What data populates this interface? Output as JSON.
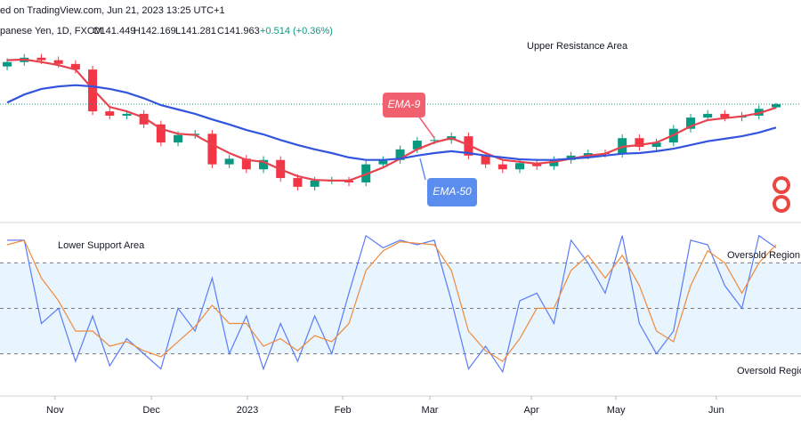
{
  "header": {
    "source": "ed on TradingView.com, Jun 21, 2023 13:25 UTC+1",
    "symbol": "panese Yen, 1D, FXCM",
    "open": "O141.449",
    "high": "H142.169",
    "low": "L141.281",
    "close": "C141.963",
    "change": "+0.514 (+0.36%)"
  },
  "chart_data": [
    {
      "type": "candlestick",
      "up_color": "#089981",
      "down_color": "#f23645",
      "open": [
        148.0,
        148.7,
        149.4,
        149.0,
        148.4,
        147.5,
        140.8,
        140.1,
        140.4,
        138.7,
        135.8,
        137.0,
        137.2,
        132.3,
        133.2,
        131.5,
        133.0,
        130.1,
        128.7,
        129.7,
        129.7,
        129.4,
        132.3,
        133.0,
        134.7,
        136.1,
        136.2,
        136.8,
        133.7,
        132.3,
        131.5,
        132.5,
        132.0,
        133.0,
        133.7,
        134.1,
        134.0,
        136.5,
        135.1,
        135.8,
        138.0,
        139.8,
        140.4,
        139.8,
        140.1,
        141.449
      ],
      "high": [
        149.3,
        150.0,
        150.0,
        149.6,
        149.0,
        148.1,
        141.4,
        141.0,
        141.0,
        139.3,
        137.6,
        137.8,
        137.8,
        133.8,
        133.8,
        133.6,
        133.6,
        130.7,
        130.3,
        130.3,
        130.3,
        132.9,
        133.6,
        135.3,
        136.7,
        136.8,
        137.4,
        137.4,
        134.3,
        132.9,
        133.1,
        133.1,
        133.6,
        134.3,
        134.7,
        134.7,
        137.1,
        137.1,
        136.4,
        138.6,
        140.4,
        141.0,
        141.0,
        140.7,
        141.8,
        142.169
      ],
      "low": [
        147.4,
        148.1,
        148.4,
        147.8,
        146.9,
        140.2,
        139.5,
        139.5,
        138.1,
        135.2,
        135.2,
        136.4,
        131.7,
        131.7,
        130.9,
        130.9,
        129.5,
        128.1,
        128.1,
        129.1,
        128.8,
        128.8,
        131.7,
        132.4,
        134.1,
        135.5,
        135.6,
        133.1,
        131.7,
        130.9,
        130.9,
        131.4,
        131.4,
        132.4,
        133.1,
        133.4,
        133.4,
        134.5,
        134.5,
        135.2,
        137.4,
        139.2,
        139.2,
        139.2,
        139.5,
        141.281
      ],
      "close": [
        148.7,
        149.4,
        149.0,
        148.4,
        147.5,
        140.8,
        140.1,
        140.4,
        138.7,
        135.8,
        137.0,
        137.2,
        132.3,
        133.2,
        131.5,
        133.0,
        130.1,
        128.7,
        129.7,
        129.7,
        129.4,
        132.3,
        133.0,
        134.7,
        136.1,
        136.2,
        136.8,
        133.7,
        132.3,
        131.5,
        132.5,
        132.0,
        133.0,
        133.7,
        134.1,
        134.0,
        136.5,
        135.1,
        135.8,
        138.0,
        139.8,
        140.4,
        139.8,
        140.1,
        141.2,
        141.963
      ],
      "series": [
        {
          "name": "EMA-9",
          "color": "#e8424f",
          "label_color": "#f0606e",
          "values": [
            149.0,
            149.1,
            148.7,
            148.2,
            147.5,
            144.4,
            141.5,
            140.8,
            139.8,
            138.0,
            137.2,
            137.0,
            135.5,
            134.1,
            133.0,
            132.7,
            131.5,
            130.4,
            129.8,
            129.7,
            129.7,
            130.7,
            131.8,
            133.2,
            134.7,
            135.8,
            136.5,
            135.4,
            134.1,
            133.0,
            132.7,
            132.4,
            132.7,
            133.2,
            133.7,
            134.0,
            135.1,
            135.4,
            135.8,
            137.0,
            138.4,
            139.4,
            139.7,
            140.0,
            140.5,
            141.4
          ]
        },
        {
          "name": "EMA-50",
          "color": "#3355dd",
          "label_color": "#5b8def",
          "values": [
            142.2,
            143.5,
            144.4,
            144.8,
            145.0,
            144.8,
            144.4,
            143.8,
            142.9,
            141.8,
            141.1,
            140.4,
            139.5,
            138.7,
            137.8,
            137.1,
            136.2,
            135.4,
            134.7,
            134.1,
            133.4,
            133.0,
            133.0,
            133.2,
            133.7,
            134.1,
            134.4,
            134.1,
            133.7,
            133.4,
            133.1,
            133.0,
            133.0,
            133.2,
            133.4,
            133.7,
            134.0,
            134.1,
            134.4,
            134.8,
            135.4,
            136.0,
            136.4,
            136.8,
            137.4,
            138.2
          ]
        }
      ],
      "ylim": [
        124.4,
        155.8
      ],
      "xlim": [
        -0.42,
        46.46
      ],
      "xticks": [
        {
          "value": 2.8,
          "label": "Nov"
        },
        {
          "value": 8.44,
          "label": "Dec"
        },
        {
          "value": 14.06,
          "label": "2023"
        },
        {
          "value": 19.64,
          "label": "Feb"
        },
        {
          "value": 24.74,
          "label": "Mar"
        },
        {
          "value": 30.68,
          "label": "Apr"
        },
        {
          "value": 35.63,
          "label": "May"
        },
        {
          "value": 41.5,
          "label": "Jun"
        }
      ],
      "annotations": [
        "Upper Resistance Area"
      ]
    },
    {
      "type": "line",
      "series": [
        {
          "color": "#5b7cf7",
          "values": [
            95,
            95,
            40,
            50,
            15,
            45,
            12,
            30,
            20,
            10,
            50,
            35,
            70,
            20,
            45,
            10,
            40,
            15,
            45,
            20,
            60,
            98,
            90,
            95,
            92,
            95,
            55,
            10,
            25,
            8,
            55,
            60,
            40,
            95,
            80,
            60,
            98,
            40,
            20,
            35,
            95,
            92,
            65,
            50,
            98,
            90
          ]
        },
        {
          "color": "#f08a3b",
          "values": [
            92,
            95,
            70,
            55,
            35,
            35,
            25,
            28,
            22,
            18,
            28,
            38,
            52,
            40,
            40,
            25,
            30,
            22,
            32,
            28,
            40,
            75,
            88,
            94,
            93,
            92,
            75,
            35,
            22,
            15,
            30,
            50,
            50,
            75,
            85,
            70,
            85,
            65,
            35,
            28,
            65,
            88,
            80,
            60,
            80,
            92
          ]
        }
      ],
      "ylim": [
        -5,
        102
      ],
      "levels": [
        20,
        50,
        80
      ],
      "annotations": [
        "Lower Support Area",
        "Oversold Region",
        "Oversold Region"
      ]
    }
  ]
}
